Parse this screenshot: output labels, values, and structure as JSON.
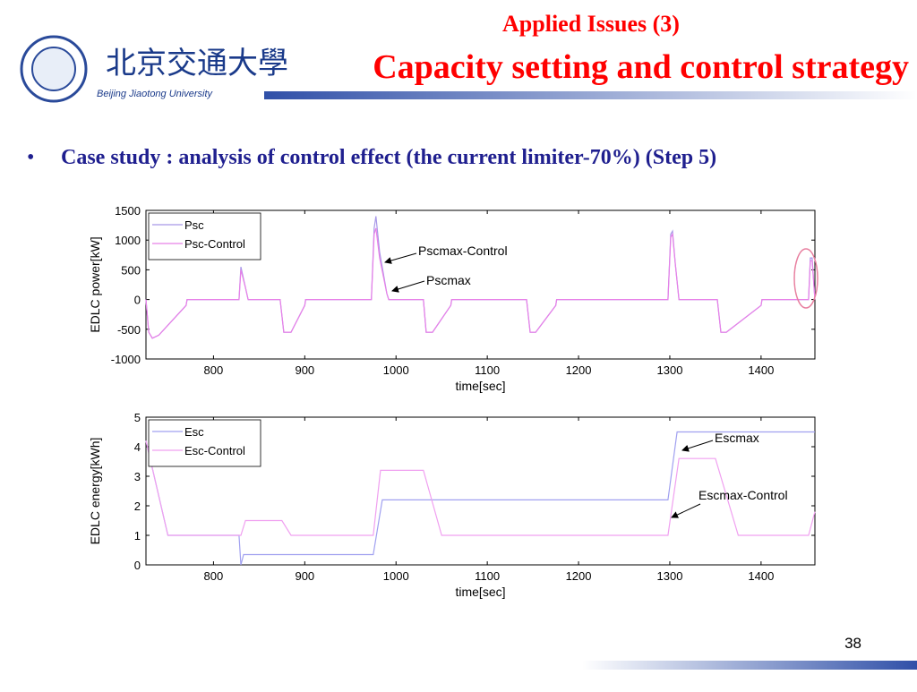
{
  "slide": {
    "heading": "Applied Issues (3)",
    "title": "Capacity setting and control strategy",
    "bullet": "Case study : analysis of control effect (the current limiter-70%) (Step 5)",
    "logo_text": "北京交通大學",
    "university": "Beijing Jiaotong University",
    "page_number": "38"
  },
  "chart_data": [
    {
      "type": "line",
      "xlabel": "time[sec]",
      "ylabel": "EDLC power[kW]",
      "xlim": [
        726,
        1459
      ],
      "ylim": [
        -1000,
        1500
      ],
      "xticks": [
        800,
        900,
        1000,
        1100,
        1200,
        1300,
        1400
      ],
      "yticks": [
        -1000,
        -500,
        0,
        500,
        1000,
        1500
      ],
      "legend": "upper left",
      "annotations": [
        "Pscmax-Control",
        "Pscmax"
      ],
      "series": [
        {
          "name": "Psc",
          "color": "#a898e8",
          "x": [
            726,
            729,
            733,
            740,
            770,
            771,
            828,
            830,
            835,
            838,
            873,
            877,
            885,
            900,
            901,
            973,
            976,
            978,
            982,
            990,
            992,
            1030,
            1033,
            1040,
            1060,
            1061,
            1143,
            1147,
            1153,
            1175,
            1176,
            1298,
            1301,
            1303,
            1306,
            1310,
            1352,
            1356,
            1362,
            1400,
            1401,
            1452,
            1454,
            1456,
            1459
          ],
          "values": [
            0,
            -550,
            -650,
            -600,
            -100,
            0,
            0,
            550,
            200,
            0,
            0,
            -550,
            -550,
            -100,
            0,
            0,
            1200,
            1400,
            800,
            100,
            0,
            0,
            -550,
            -550,
            -100,
            0,
            0,
            -550,
            -550,
            -100,
            0,
            0,
            1100,
            1150,
            600,
            0,
            0,
            -550,
            -550,
            -100,
            0,
            0,
            700,
            700,
            0
          ]
        },
        {
          "name": "Psc-Control",
          "color": "#e880e8",
          "x": [
            726,
            729,
            733,
            740,
            770,
            771,
            828,
            830,
            835,
            838,
            873,
            877,
            885,
            900,
            901,
            973,
            976,
            978,
            982,
            990,
            992,
            1030,
            1033,
            1040,
            1060,
            1061,
            1143,
            1147,
            1153,
            1175,
            1176,
            1298,
            1301,
            1303,
            1306,
            1310,
            1352,
            1356,
            1362,
            1400,
            1401,
            1452,
            1454,
            1456,
            1459
          ],
          "values": [
            0,
            -550,
            -650,
            -600,
            -100,
            0,
            0,
            500,
            200,
            0,
            0,
            -550,
            -550,
            -100,
            0,
            0,
            1100,
            1200,
            700,
            100,
            0,
            0,
            -550,
            -550,
            -100,
            0,
            0,
            -550,
            -550,
            -100,
            0,
            0,
            1050,
            1100,
            600,
            0,
            0,
            -550,
            -550,
            -100,
            0,
            0,
            650,
            650,
            0
          ]
        }
      ]
    },
    {
      "type": "line",
      "xlabel": "time[sec]",
      "ylabel": "EDLC energy[kWh]",
      "xlim": [
        726,
        1459
      ],
      "ylim": [
        0,
        5
      ],
      "xticks": [
        800,
        900,
        1000,
        1100,
        1200,
        1300,
        1400
      ],
      "yticks": [
        0,
        1,
        2,
        3,
        4,
        5
      ],
      "legend": "upper left",
      "annotations": [
        "Escmax",
        "Escmax-Control"
      ],
      "series": [
        {
          "name": "Esc",
          "color": "#a0a0f0",
          "x": [
            726,
            750,
            828,
            830,
            833,
            975,
            985,
            1298,
            1308,
            1459
          ],
          "values": [
            4.2,
            1,
            1,
            0,
            0.35,
            0.35,
            2.2,
            2.2,
            4.5,
            4.5
          ]
        },
        {
          "name": "Esc-Control",
          "color": "#f0a0f0",
          "x": [
            726,
            750,
            830,
            835,
            875,
            885,
            975,
            983,
            1030,
            1050,
            1298,
            1310,
            1350,
            1375,
            1452,
            1459
          ],
          "values": [
            4.2,
            1,
            1,
            1.5,
            1.5,
            1,
            1,
            3.2,
            3.2,
            1,
            1,
            3.6,
            3.6,
            1,
            1,
            1.8
          ]
        }
      ]
    }
  ]
}
